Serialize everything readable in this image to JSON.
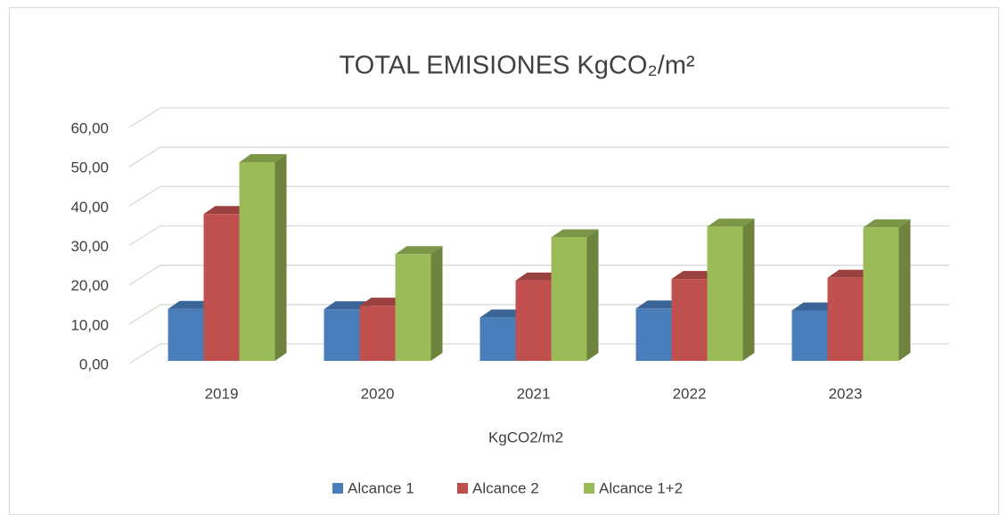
{
  "chart_data": {
    "type": "bar3d",
    "title": "TOTAL EMISIONES KgCO₂/m²",
    "x_label": "KgCO2/m2",
    "categories": [
      "2019",
      "2020",
      "2021",
      "2022",
      "2023"
    ],
    "series": [
      {
        "name": "Alcance 1",
        "color": "#4a7ebb",
        "values": [
          13.2,
          13.1,
          11,
          13.3,
          12.8
        ]
      },
      {
        "name": "Alcance 2",
        "color": "#c0504d",
        "values": [
          37.3,
          14,
          20.4,
          20.8,
          21.1
        ]
      },
      {
        "name": "Alcance 1+2",
        "color": "#9bbb59",
        "values": [
          50.5,
          27.1,
          31.4,
          34.1,
          33.9
        ]
      }
    ],
    "ylim": [
      0,
      60
    ],
    "yticks": [
      {
        "value": 0,
        "label": "0,00"
      },
      {
        "value": 10,
        "label": "10,00"
      },
      {
        "value": 20,
        "label": "20,00"
      },
      {
        "value": 30,
        "label": "30,00"
      },
      {
        "value": 40,
        "label": "40,00"
      },
      {
        "value": 50,
        "label": "50,00"
      },
      {
        "value": 60,
        "label": "60,00"
      }
    ],
    "grid": true,
    "legend": "bottom"
  }
}
